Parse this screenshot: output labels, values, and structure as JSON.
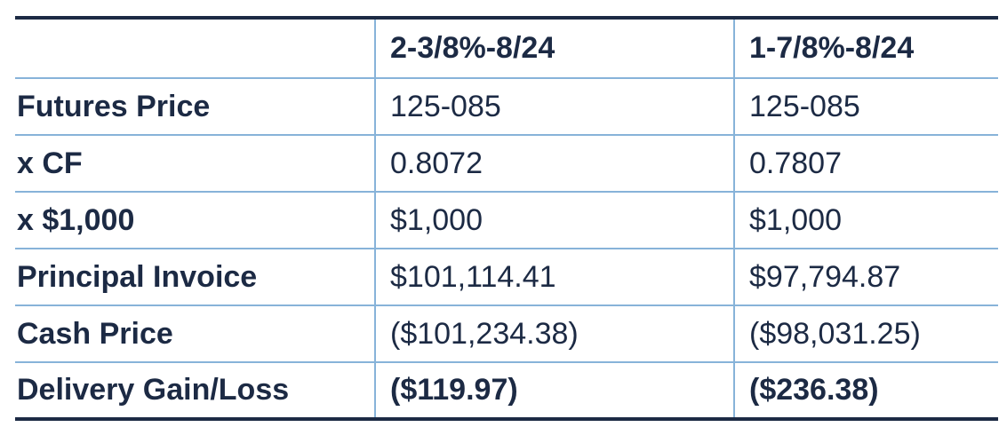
{
  "table": {
    "header": {
      "blank": "",
      "col1": "2-3/8%-8/24",
      "col2": "1-7/8%-8/24"
    },
    "rows": [
      {
        "label": "Futures Price",
        "v1": "125-085",
        "v2": "125-085"
      },
      {
        "label": "x CF",
        "v1": "0.8072",
        "v2": "0.7807"
      },
      {
        "label": "x $1,000",
        "v1": "$1,000",
        "v2": "$1,000"
      },
      {
        "label": "Principal Invoice",
        "v1": "$101,114.41",
        "v2": "$97,794.87"
      },
      {
        "label": "Cash Price",
        "v1": "($101,234.38)",
        "v2": "($98,031.25)"
      },
      {
        "label": "Delivery Gain/Loss",
        "v1": "($119.97)",
        "v2": "($236.38)"
      }
    ]
  },
  "colors": {
    "text": "#1c2a44",
    "grid": "#87b3d9",
    "outer_rule": "#1c2a44"
  }
}
